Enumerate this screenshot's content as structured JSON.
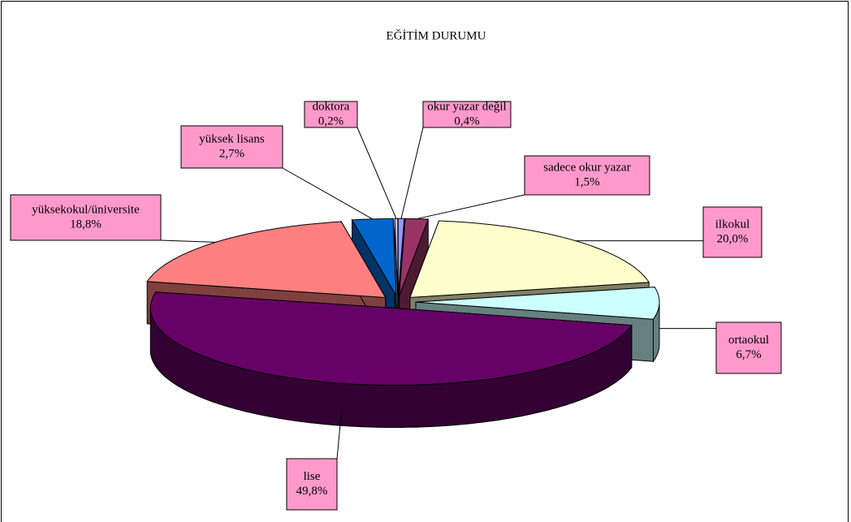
{
  "chart_data": {
    "type": "pie",
    "title": "EĞİTİM DURUMU",
    "categories": [
      "okur yazar değil",
      "sadece okur yazar",
      "ilkokul",
      "ortaokul",
      "lise",
      "yüksekokul/üniversite",
      "yüksek lisans",
      "doktora"
    ],
    "values": [
      0.4,
      1.5,
      20.0,
      6.7,
      49.8,
      18.8,
      2.7,
      0.2
    ],
    "value_labels": [
      "0,4%",
      "1,5%",
      "20,0%",
      "6,7%",
      "49,8%",
      "18,8%",
      "2,7%",
      "0,2%"
    ],
    "colors": [
      "#9999ff",
      "#993366",
      "#ffffcc",
      "#ccffff",
      "#660066",
      "#ff8080",
      "#0066cc",
      "#ccccff"
    ]
  }
}
